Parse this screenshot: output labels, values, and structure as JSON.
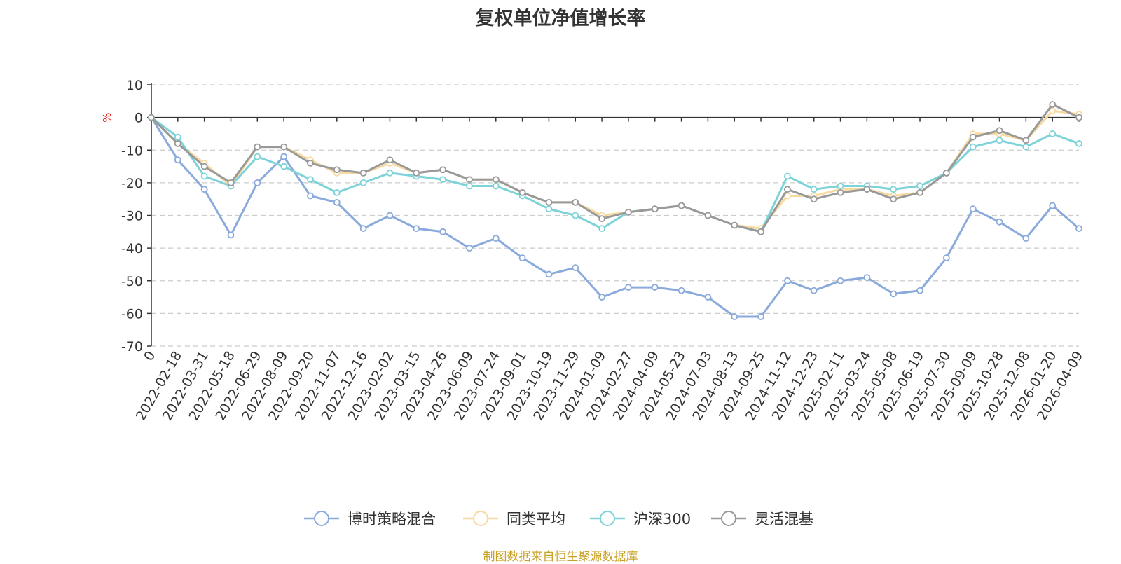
{
  "title": "复权单位净值增长率",
  "footer": "制图数据来自恒生聚源数据库",
  "chart_data": {
    "type": "line",
    "unit": "%",
    "ylim": [
      -70,
      10
    ],
    "yticks": [
      10,
      0,
      -10,
      -20,
      -30,
      -40,
      -50,
      -60,
      -70
    ],
    "grid": true,
    "legend_position": "bottom",
    "x_labels": [
      "0",
      "2022-02-18",
      "2022-03-31",
      "2022-05-18",
      "2022-06-29",
      "2022-08-09",
      "2022-09-20",
      "2022-11-07",
      "2022-12-16",
      "2023-02-02",
      "2023-03-15",
      "2023-04-26",
      "2023-06-09",
      "2023-07-24",
      "2023-09-01",
      "2023-10-19",
      "2023-11-29",
      "2024-01-09",
      "2024-02-27",
      "2024-04-09",
      "2024-05-23",
      "2024-07-03",
      "2024-08-13",
      "2024-09-25",
      "2024-11-12",
      "2024-12-23",
      "2025-02-11",
      "2025-03-24",
      "2025-05-08",
      "2025-06-19",
      "2025-07-30",
      "2025-09-09",
      "2025-10-28",
      "2025-12-08",
      "2026-01-20",
      "2026-04-09"
    ],
    "series": [
      {
        "name": "博时策略混合",
        "color": "#8aaadb",
        "values": [
          0,
          -13,
          -22,
          -36,
          -20,
          -12,
          -24,
          -26,
          -34,
          -30,
          -34,
          -35,
          -40,
          -37,
          -43,
          -48,
          -46,
          -55,
          -52,
          -52,
          -53,
          -55,
          -61,
          -61,
          -50,
          -53,
          -50,
          -49,
          -54,
          -53,
          -43,
          -28,
          -32,
          -37,
          -27,
          -34
        ]
      },
      {
        "name": "同类平均",
        "color": "#f8d9a0",
        "values": [
          0,
          -8,
          -14,
          -21,
          -9,
          -9,
          -13,
          -17,
          -17,
          -14,
          -17,
          -16,
          -19,
          -19,
          -23,
          -26,
          -26,
          -30,
          -29,
          -28,
          -27,
          -30,
          -33,
          -34,
          -24,
          -24,
          -22,
          -22,
          -24,
          -23,
          -17,
          -5,
          -5,
          -7,
          2,
          1
        ]
      },
      {
        "name": "沪深300",
        "color": "#7dd3d8",
        "values": [
          0,
          -6,
          -18,
          -21,
          -12,
          -15,
          -19,
          -23,
          -20,
          -17,
          -18,
          -19,
          -21,
          -21,
          -24,
          -28,
          -30,
          -34,
          -29,
          -28,
          -27,
          -30,
          -33,
          -35,
          -18,
          -22,
          -21,
          -21,
          -22,
          -21,
          -17,
          -9,
          -7,
          -9,
          -5,
          -8
        ]
      },
      {
        "name": "灵活混基",
        "color": "#999999",
        "values": [
          0,
          -8,
          -15,
          -20,
          -9,
          -9,
          -14,
          -16,
          -17,
          -13,
          -17,
          -16,
          -19,
          -19,
          -23,
          -26,
          -26,
          -31,
          -29,
          -28,
          -27,
          -30,
          -33,
          -35,
          -22,
          -25,
          -23,
          -22,
          -25,
          -23,
          -17,
          -6,
          -4,
          -7,
          4,
          0
        ]
      }
    ]
  }
}
